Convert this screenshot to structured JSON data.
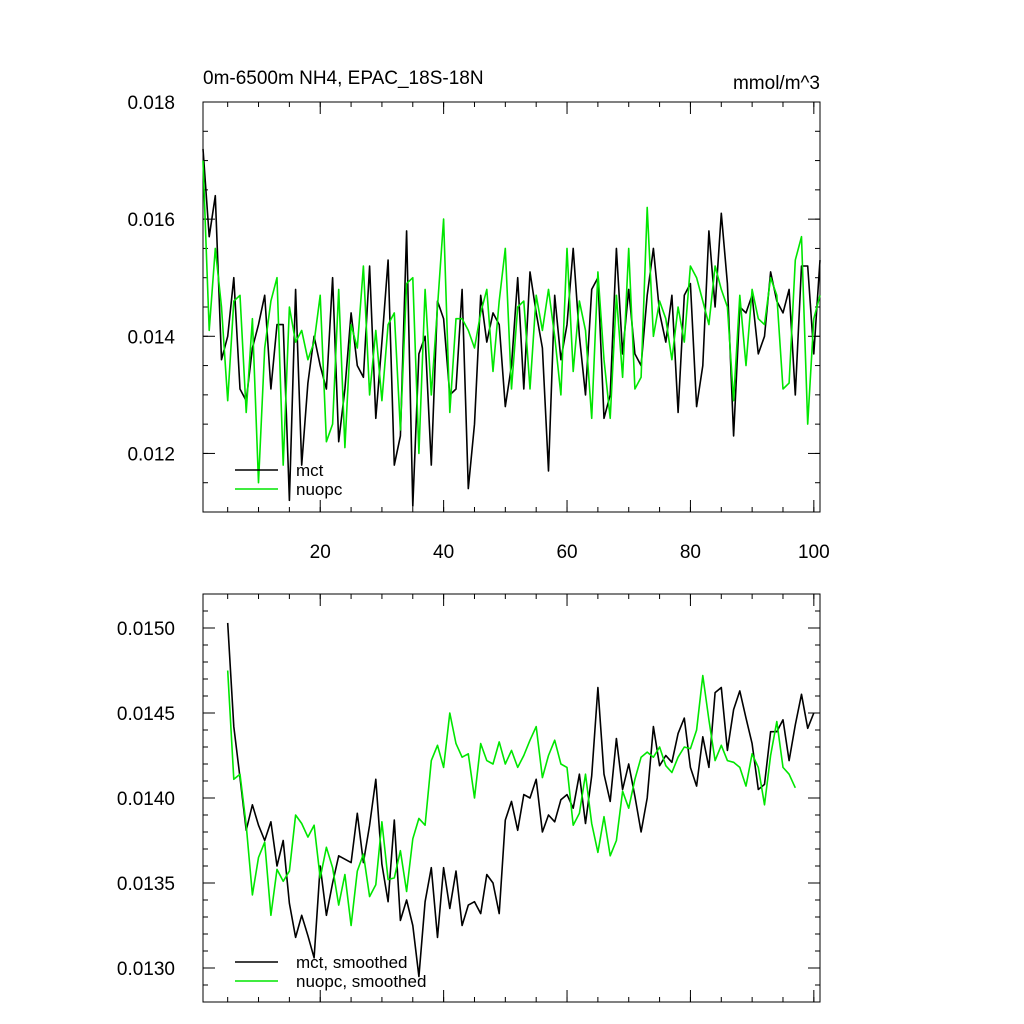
{
  "colors": {
    "mct": "#000000",
    "nuopc": "#00e600",
    "axis": "#000000",
    "background": "#ffffff"
  },
  "chart_data": [
    {
      "type": "line",
      "title": "0m-6500m NH4, EPAC_18S-18N",
      "units": "mmol/m^3",
      "xlim": [
        1,
        101
      ],
      "ylim": [
        0.011,
        0.018
      ],
      "x_ticks": [
        20,
        40,
        60,
        80,
        100
      ],
      "y_ticks": [
        "0.012",
        "0.014",
        "0.016",
        "0.018"
      ],
      "legend_position": "bottom-left",
      "grid": false,
      "series": [
        {
          "name": "mct",
          "color": "#000000",
          "values": [
            0.0172,
            0.0157,
            0.0164,
            0.0136,
            0.014,
            0.015,
            0.0131,
            0.0129,
            0.0138,
            0.0142,
            0.0147,
            0.0131,
            0.0142,
            0.0142,
            0.0112,
            0.0148,
            0.0118,
            0.0132,
            0.014,
            0.0135,
            0.0131,
            0.015,
            0.0122,
            0.0131,
            0.0144,
            0.0135,
            0.0133,
            0.0152,
            0.0126,
            0.0139,
            0.0153,
            0.0118,
            0.0123,
            0.0158,
            0.0111,
            0.0137,
            0.014,
            0.0118,
            0.0146,
            0.0143,
            0.013,
            0.0131,
            0.0148,
            0.0114,
            0.0125,
            0.0147,
            0.0139,
            0.0144,
            0.0142,
            0.0128,
            0.0135,
            0.015,
            0.0131,
            0.0151,
            0.0144,
            0.0138,
            0.0117,
            0.0147,
            0.0136,
            0.0142,
            0.0155,
            0.014,
            0.013,
            0.0148,
            0.015,
            0.0126,
            0.013,
            0.0155,
            0.0137,
            0.0148,
            0.0137,
            0.0135,
            0.0147,
            0.0155,
            0.0144,
            0.0139,
            0.0147,
            0.0127,
            0.0147,
            0.0149,
            0.0128,
            0.0135,
            0.0158,
            0.0145,
            0.0161,
            0.0149,
            0.0123,
            0.0145,
            0.0144,
            0.0147,
            0.0137,
            0.014,
            0.0151,
            0.0146,
            0.0144,
            0.0148,
            0.013,
            0.0152,
            0.0152,
            0.0137,
            0.0153
          ]
        },
        {
          "name": "nuopc",
          "color": "#00e600",
          "values": [
            0.017,
            0.0141,
            0.0155,
            0.0145,
            0.0129,
            0.0146,
            0.0147,
            0.0127,
            0.0143,
            0.0115,
            0.0138,
            0.0146,
            0.015,
            0.0118,
            0.0145,
            0.0139,
            0.0141,
            0.0136,
            0.0139,
            0.0147,
            0.0122,
            0.0125,
            0.0148,
            0.0121,
            0.0142,
            0.0138,
            0.0152,
            0.013,
            0.0141,
            0.0129,
            0.0142,
            0.0144,
            0.0124,
            0.0149,
            0.015,
            0.012,
            0.0148,
            0.013,
            0.0145,
            0.016,
            0.0127,
            0.0143,
            0.0143,
            0.0141,
            0.0138,
            0.0144,
            0.0148,
            0.0134,
            0.0146,
            0.0155,
            0.0131,
            0.0145,
            0.0146,
            0.0131,
            0.0147,
            0.0141,
            0.0148,
            0.014,
            0.013,
            0.0155,
            0.0134,
            0.0146,
            0.0141,
            0.0126,
            0.0151,
            0.0136,
            0.0126,
            0.0147,
            0.0133,
            0.0155,
            0.0131,
            0.0133,
            0.0162,
            0.014,
            0.0146,
            0.0143,
            0.0136,
            0.0145,
            0.0139,
            0.0152,
            0.015,
            0.0146,
            0.0142,
            0.0152,
            0.0148,
            0.0145,
            0.0129,
            0.0147,
            0.0135,
            0.0148,
            0.0143,
            0.0142,
            0.015,
            0.0147,
            0.0131,
            0.0132,
            0.0153,
            0.0157,
            0.0125,
            0.0143,
            0.0147
          ]
        }
      ]
    },
    {
      "type": "line",
      "xlim": [
        1,
        101
      ],
      "ylim": [
        0.0128,
        0.0152
      ],
      "x_ticks": [
        20,
        40,
        60,
        80,
        100
      ],
      "y_ticks": [
        "0.0130",
        "0.0135",
        "0.0140",
        "0.0145",
        "0.0150"
      ],
      "legend_position": "bottom-left",
      "grid": false,
      "series": [
        {
          "name": "mct, smoothed",
          "color": "#000000",
          "x_start": 5,
          "values": [
            0.01503,
            0.01442,
            0.01412,
            0.01381,
            0.01396,
            0.01384,
            0.01375,
            0.01386,
            0.0136,
            0.01375,
            0.01338,
            0.01318,
            0.01331,
            0.01319,
            0.01306,
            0.0136,
            0.01331,
            0.0135,
            0.01366,
            0.01364,
            0.01362,
            0.01391,
            0.01362,
            0.01384,
            0.01411,
            0.01361,
            0.01339,
            0.01387,
            0.01328,
            0.0134,
            0.01325,
            0.01295,
            0.01339,
            0.01359,
            0.01318,
            0.01359,
            0.01335,
            0.01357,
            0.01325,
            0.01337,
            0.01339,
            0.01332,
            0.01355,
            0.0135,
            0.01332,
            0.01387,
            0.01398,
            0.01381,
            0.01402,
            0.014,
            0.01411,
            0.0138,
            0.0139,
            0.01386,
            0.01399,
            0.01402,
            0.01394,
            0.01414,
            0.01385,
            0.01413,
            0.01465,
            0.01414,
            0.01398,
            0.01435,
            0.01405,
            0.0142,
            0.01401,
            0.0138,
            0.014,
            0.01442,
            0.01419,
            0.01425,
            0.01421,
            0.01438,
            0.01447,
            0.01418,
            0.01407,
            0.01436,
            0.01418,
            0.01462,
            0.01465,
            0.01428,
            0.01452,
            0.01463,
            0.01447,
            0.01432,
            0.01405,
            0.01408,
            0.01439,
            0.01439,
            0.01446,
            0.01422,
            0.01443,
            0.01461,
            0.01441,
            0.0145
          ]
        },
        {
          "name": "nuopc, smoothed",
          "color": "#00e600",
          "x_start": 5,
          "values": [
            0.01475,
            0.01411,
            0.01414,
            0.01384,
            0.01343,
            0.01365,
            0.01374,
            0.01331,
            0.01358,
            0.01351,
            0.01357,
            0.0139,
            0.01385,
            0.01377,
            0.01384,
            0.01353,
            0.01371,
            0.01359,
            0.01337,
            0.01355,
            0.01325,
            0.01357,
            0.01367,
            0.01342,
            0.01349,
            0.01386,
            0.01352,
            0.01353,
            0.01369,
            0.01345,
            0.01376,
            0.01388,
            0.01384,
            0.01422,
            0.01431,
            0.01418,
            0.0145,
            0.01432,
            0.01424,
            0.01426,
            0.014,
            0.01432,
            0.01422,
            0.0142,
            0.01433,
            0.0142,
            0.01428,
            0.01418,
            0.01425,
            0.01434,
            0.01442,
            0.01412,
            0.01425,
            0.01434,
            0.0142,
            0.01418,
            0.01384,
            0.01391,
            0.01414,
            0.01385,
            0.01368,
            0.01389,
            0.01366,
            0.01375,
            0.01404,
            0.01394,
            0.01411,
            0.01424,
            0.01427,
            0.01424,
            0.0143,
            0.01419,
            0.01415,
            0.01424,
            0.0143,
            0.01429,
            0.0144,
            0.01472,
            0.01446,
            0.01422,
            0.01431,
            0.01422,
            0.01421,
            0.01418,
            0.01407,
            0.01426,
            0.01418,
            0.01396,
            0.01425,
            0.01445,
            0.01418,
            0.01414,
            0.01406
          ]
        }
      ]
    }
  ]
}
